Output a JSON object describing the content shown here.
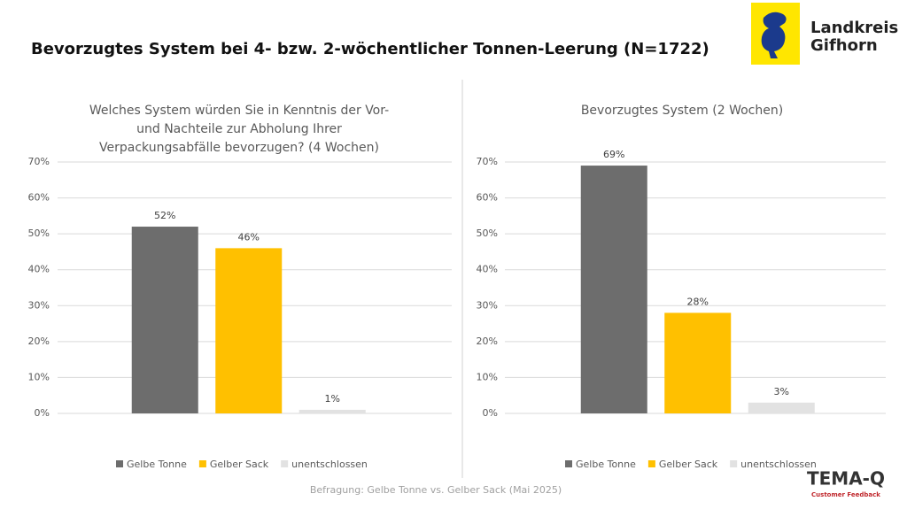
{
  "title": "Bevorzugtes System bei 4- bzw. 2-wöchentlicher Tonnen-Leerung (N=1722)",
  "logo": {
    "line1": "Landkreis",
    "line2": "Gifhorn"
  },
  "brand": {
    "name": "TEMA-Q",
    "tagline": "Customer Feedback"
  },
  "footer": "Befragung: Gelbe Tonne vs. Gelber Sack (Mai 2025)",
  "chart_data": [
    {
      "type": "bar",
      "title": [
        "Welches System würden Sie in Kenntnis der Vor-",
        "und Nachteile zur Abholung Ihrer",
        "Verpackungsabfälle bevorzugen? (4 Wochen)"
      ],
      "categories": [
        "Gelbe Tonne",
        "Gelber Sack",
        "unentschlossen"
      ],
      "values": [
        52,
        46,
        1
      ],
      "value_labels": [
        "52%",
        "46%",
        "1%"
      ],
      "colors": [
        "#6d6d6d",
        "#ffc000",
        "#e2e2e2"
      ],
      "ylim": [
        0,
        70
      ],
      "yticks": [
        {
          "value": 0,
          "label": "0%"
        },
        {
          "value": 10,
          "label": "10%"
        },
        {
          "value": 20,
          "label": "20%"
        },
        {
          "value": 30,
          "label": "30%"
        },
        {
          "value": 40,
          "label": "40%"
        },
        {
          "value": 50,
          "label": "50%"
        },
        {
          "value": 60,
          "label": "60%"
        },
        {
          "value": 70,
          "label": "70%"
        }
      ],
      "grid": true,
      "legend": "bottom"
    },
    {
      "type": "bar",
      "title": [
        "Bevorzugtes System (2 Wochen)"
      ],
      "categories": [
        "Gelbe Tonne",
        "Gelber Sack",
        "unentschlossen"
      ],
      "values": [
        69,
        28,
        3
      ],
      "value_labels": [
        "69%",
        "28%",
        "3%"
      ],
      "colors": [
        "#6d6d6d",
        "#ffc000",
        "#e2e2e2"
      ],
      "ylim": [
        0,
        70
      ],
      "yticks": [
        {
          "value": 0,
          "label": "0%"
        },
        {
          "value": 10,
          "label": "10%"
        },
        {
          "value": 20,
          "label": "20%"
        },
        {
          "value": 30,
          "label": "30%"
        },
        {
          "value": 40,
          "label": "40%"
        },
        {
          "value": 50,
          "label": "50%"
        },
        {
          "value": 60,
          "label": "60%"
        },
        {
          "value": 70,
          "label": "70%"
        }
      ],
      "grid": true,
      "legend": "bottom"
    }
  ]
}
